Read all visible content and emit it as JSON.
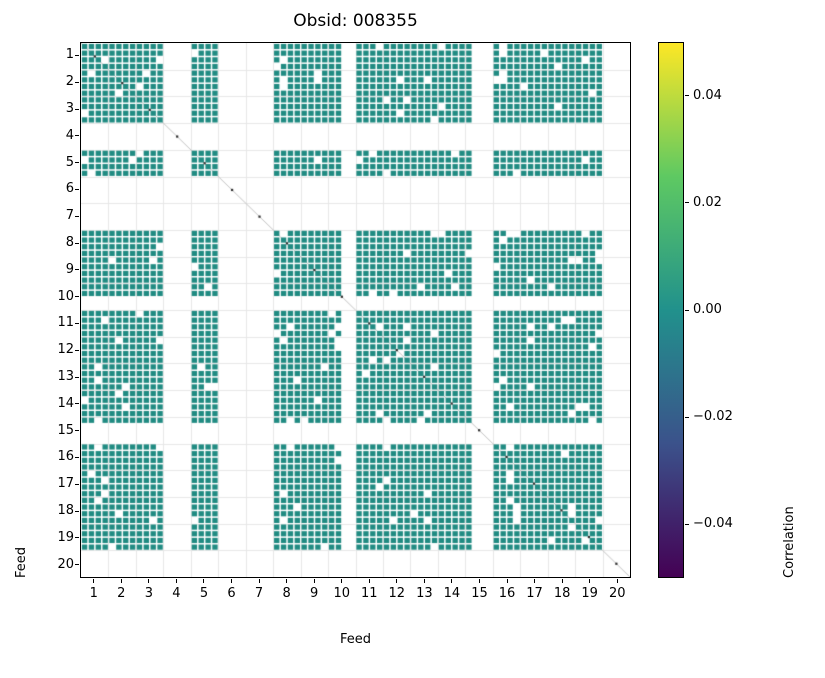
{
  "chart_data": {
    "type": "heatmap",
    "title": "Obsid: 008355",
    "xlabel": "Feed",
    "ylabel": "Feed",
    "x_ticks": [
      "1",
      "2",
      "3",
      "4",
      "5",
      "6",
      "7",
      "8",
      "9",
      "10",
      "11",
      "12",
      "13",
      "14",
      "15",
      "16",
      "17",
      "18",
      "19",
      "20"
    ],
    "y_ticks": [
      "1",
      "2",
      "3",
      "4",
      "5",
      "6",
      "7",
      "8",
      "9",
      "10",
      "11",
      "12",
      "13",
      "14",
      "15",
      "16",
      "17",
      "18",
      "19",
      "20"
    ],
    "n_feeds": 20,
    "bands_per_feed": 4,
    "value_present_cells": 0.0,
    "cell_color": "#208b82",
    "grid_color": "#e7e7e7",
    "diagonal_line_color": "#c4c4c4",
    "diagonal_dot_color": "#2b2b2b",
    "missing_feeds": [
      4,
      6,
      7,
      20
    ],
    "partial_feeds": {
      "10": [
        0,
        1
      ],
      "15": [
        0
      ]
    },
    "random_missing_fraction": 0.05,
    "grid": true,
    "colorbar": {
      "label": "Correlation",
      "ticks": [
        "0.04",
        "0.02",
        "0.00",
        "−0.02",
        "−0.04"
      ],
      "tick_values": [
        0.04,
        0.02,
        0.0,
        -0.02,
        -0.04
      ],
      "vmin": -0.05,
      "vmax": 0.05,
      "colormap": "viridis",
      "stops": [
        {
          "pos": 0.0,
          "color": "#440154"
        },
        {
          "pos": 0.25,
          "color": "#3b528b"
        },
        {
          "pos": 0.5,
          "color": "#21918c"
        },
        {
          "pos": 0.75,
          "color": "#5ec962"
        },
        {
          "pos": 1.0,
          "color": "#fde725"
        }
      ]
    }
  }
}
